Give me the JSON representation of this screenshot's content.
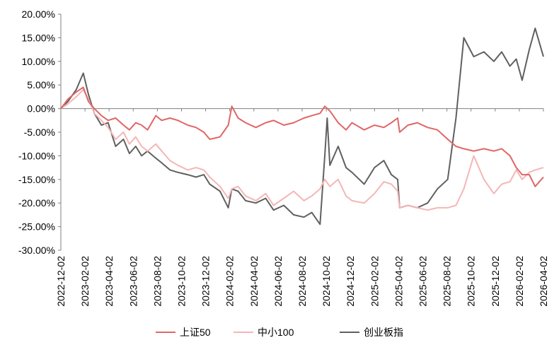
{
  "chart_data": {
    "type": "line",
    "title": "",
    "xlabel": "",
    "ylabel": "",
    "ylim": [
      -30,
      20
    ],
    "y_ticks": [
      20,
      15,
      10,
      5,
      0,
      -5,
      -10,
      -15,
      -20,
      -25,
      -30
    ],
    "y_tick_labels": [
      "20.00%",
      "15.00%",
      "10.00%",
      "5.00%",
      "0.00%",
      "-5.00%",
      "-10.00%",
      "-15.00%",
      "-20.00%",
      "-25.00%",
      "-30.00%"
    ],
    "x_tick_labels": [
      "2022-12-02",
      "2023-02-02",
      "2023-04-02",
      "2023-06-02",
      "2023-08-02",
      "2023-10-02",
      "2023-12-02",
      "2024-02-02",
      "2024-04-02",
      "2024-06-02",
      "2024-08-02",
      "2024-10-02",
      "2024-12-02",
      "2025-02-02",
      "2025-04-02",
      "2025-06-02",
      "2025-08-02",
      "2025-10-02",
      "2025-12-02",
      "2026-02-02",
      "2026-04-02"
    ],
    "x_start": "2022-12-02",
    "x_end": "2026-04-10",
    "grid": false,
    "legend_position": "bottom",
    "series": [
      {
        "name": "上证50",
        "color": "#e06666",
        "points": [
          [
            "2022-12-02",
            0
          ],
          [
            "2022-12-20",
            2
          ],
          [
            "2023-01-10",
            3.5
          ],
          [
            "2023-01-28",
            4.5
          ],
          [
            "2023-02-10",
            1.5
          ],
          [
            "2023-02-25",
            0
          ],
          [
            "2023-03-15",
            -1.5
          ],
          [
            "2023-04-01",
            -2.5
          ],
          [
            "2023-04-20",
            -2
          ],
          [
            "2023-05-10",
            -3.5
          ],
          [
            "2023-05-25",
            -4.5
          ],
          [
            "2023-06-10",
            -3
          ],
          [
            "2023-06-25",
            -3.5
          ],
          [
            "2023-07-10",
            -4.5
          ],
          [
            "2023-07-31",
            -1.5
          ],
          [
            "2023-08-15",
            -2.5
          ],
          [
            "2023-09-05",
            -2
          ],
          [
            "2023-09-25",
            -2.5
          ],
          [
            "2023-10-20",
            -3.5
          ],
          [
            "2023-11-10",
            -4
          ],
          [
            "2023-11-30",
            -5
          ],
          [
            "2023-12-15",
            -6.5
          ],
          [
            "2024-01-10",
            -6
          ],
          [
            "2024-01-31",
            -3.5
          ],
          [
            "2024-02-09",
            0.5
          ],
          [
            "2024-02-25",
            -2
          ],
          [
            "2024-03-15",
            -3
          ],
          [
            "2024-04-10",
            -4
          ],
          [
            "2024-05-05",
            -3
          ],
          [
            "2024-05-25",
            -2.5
          ],
          [
            "2024-06-20",
            -3.5
          ],
          [
            "2024-07-15",
            -3
          ],
          [
            "2024-08-10",
            -2
          ],
          [
            "2024-08-30",
            -1.5
          ],
          [
            "2024-09-20",
            -1
          ],
          [
            "2024-10-02",
            0.5
          ],
          [
            "2024-10-15",
            -0.5
          ],
          [
            "2024-11-05",
            -3
          ],
          [
            "2024-11-25",
            -4.5
          ],
          [
            "2024-12-10",
            -3
          ],
          [
            "2025-01-10",
            -4.5
          ],
          [
            "2025-02-05",
            -3.5
          ],
          [
            "2025-03-01",
            -4
          ],
          [
            "2025-03-20",
            -3
          ],
          [
            "2025-04-05",
            -2
          ],
          [
            "2025-04-10",
            -5
          ],
          [
            "2025-05-01",
            -3.5
          ],
          [
            "2025-05-25",
            -3
          ],
          [
            "2025-06-20",
            -4
          ],
          [
            "2025-07-15",
            -4.5
          ],
          [
            "2025-08-10",
            -6.5
          ],
          [
            "2025-08-31",
            -8
          ],
          [
            "2025-09-20",
            -8.5
          ],
          [
            "2025-10-15",
            -9
          ],
          [
            "2025-11-10",
            -8.5
          ],
          [
            "2025-12-05",
            -9
          ],
          [
            "2025-12-25",
            -8.5
          ],
          [
            "2026-01-15",
            -10
          ],
          [
            "2026-01-31",
            -12.5
          ],
          [
            "2026-02-15",
            -14
          ],
          [
            "2026-03-05",
            -14
          ],
          [
            "2026-03-20",
            -16.5
          ],
          [
            "2026-04-10",
            -14.5
          ]
        ]
      },
      {
        "name": "中小100",
        "color": "#f4b6b6",
        "points": [
          [
            "2022-12-02",
            0
          ],
          [
            "2022-12-20",
            1
          ],
          [
            "2023-01-10",
            2.5
          ],
          [
            "2023-01-28",
            4
          ],
          [
            "2023-02-10",
            2
          ],
          [
            "2023-02-25",
            -1
          ],
          [
            "2023-03-15",
            -2.5
          ],
          [
            "2023-04-01",
            -4
          ],
          [
            "2023-04-20",
            -6.5
          ],
          [
            "2023-05-10",
            -5
          ],
          [
            "2023-05-25",
            -7.5
          ],
          [
            "2023-06-10",
            -6
          ],
          [
            "2023-06-25",
            -8
          ],
          [
            "2023-07-10",
            -9
          ],
          [
            "2023-07-31",
            -7.5
          ],
          [
            "2023-08-15",
            -9
          ],
          [
            "2023-09-05",
            -11
          ],
          [
            "2023-09-25",
            -12
          ],
          [
            "2023-10-20",
            -13
          ],
          [
            "2023-11-10",
            -12.5
          ],
          [
            "2023-11-30",
            -13
          ],
          [
            "2023-12-15",
            -14.5
          ],
          [
            "2024-01-10",
            -16.5
          ],
          [
            "2024-01-31",
            -19
          ],
          [
            "2024-02-09",
            -17
          ],
          [
            "2024-02-25",
            -16.5
          ],
          [
            "2024-03-15",
            -18.5
          ],
          [
            "2024-04-10",
            -19.5
          ],
          [
            "2024-05-05",
            -18
          ],
          [
            "2024-05-25",
            -20.5
          ],
          [
            "2024-06-20",
            -19
          ],
          [
            "2024-07-15",
            -17.5
          ],
          [
            "2024-08-10",
            -19.5
          ],
          [
            "2024-08-30",
            -18.5
          ],
          [
            "2024-09-20",
            -17
          ],
          [
            "2024-10-02",
            -15
          ],
          [
            "2024-10-15",
            -16.5
          ],
          [
            "2024-11-05",
            -15
          ],
          [
            "2024-11-25",
            -18.5
          ],
          [
            "2024-12-10",
            -19.5
          ],
          [
            "2025-01-10",
            -20
          ],
          [
            "2025-02-05",
            -18
          ],
          [
            "2025-03-01",
            -15.5
          ],
          [
            "2025-03-20",
            -16
          ],
          [
            "2025-04-05",
            -17.5
          ],
          [
            "2025-04-10",
            -21
          ],
          [
            "2025-05-01",
            -20.5
          ],
          [
            "2025-05-25",
            -21
          ],
          [
            "2025-06-20",
            -21.5
          ],
          [
            "2025-07-15",
            -21
          ],
          [
            "2025-08-10",
            -21
          ],
          [
            "2025-08-31",
            -20.5
          ],
          [
            "2025-09-20",
            -17
          ],
          [
            "2025-10-15",
            -10
          ],
          [
            "2025-11-10",
            -15
          ],
          [
            "2025-12-05",
            -18
          ],
          [
            "2025-12-25",
            -16
          ],
          [
            "2026-01-15",
            -15.5
          ],
          [
            "2026-01-31",
            -13
          ],
          [
            "2026-02-15",
            -15
          ],
          [
            "2026-03-05",
            -13.5
          ],
          [
            "2026-03-20",
            -13
          ],
          [
            "2026-04-10",
            -12.5
          ]
        ]
      },
      {
        "name": "创业板指",
        "color": "#606060",
        "points": [
          [
            "2022-12-02",
            0
          ],
          [
            "2022-12-20",
            1.5
          ],
          [
            "2023-01-10",
            4
          ],
          [
            "2023-01-28",
            7.5
          ],
          [
            "2023-02-10",
            3
          ],
          [
            "2023-02-25",
            -1
          ],
          [
            "2023-03-15",
            -3.5
          ],
          [
            "2023-04-01",
            -3
          ],
          [
            "2023-04-20",
            -8
          ],
          [
            "2023-05-10",
            -6.5
          ],
          [
            "2023-05-25",
            -9.5
          ],
          [
            "2023-06-10",
            -8
          ],
          [
            "2023-06-25",
            -10
          ],
          [
            "2023-07-10",
            -9
          ],
          [
            "2023-07-31",
            -10.5
          ],
          [
            "2023-08-15",
            -11.5
          ],
          [
            "2023-09-05",
            -13
          ],
          [
            "2023-09-25",
            -13.5
          ],
          [
            "2023-10-20",
            -14
          ],
          [
            "2023-11-10",
            -14.5
          ],
          [
            "2023-11-30",
            -14
          ],
          [
            "2023-12-15",
            -16
          ],
          [
            "2024-01-10",
            -17.5
          ],
          [
            "2024-01-31",
            -21
          ],
          [
            "2024-02-09",
            -17
          ],
          [
            "2024-02-25",
            -17.5
          ],
          [
            "2024-03-15",
            -19.5
          ],
          [
            "2024-04-10",
            -20
          ],
          [
            "2024-05-05",
            -19
          ],
          [
            "2024-05-25",
            -21.5
          ],
          [
            "2024-06-20",
            -20.5
          ],
          [
            "2024-07-15",
            -22.5
          ],
          [
            "2024-08-10",
            -23
          ],
          [
            "2024-08-30",
            -22
          ],
          [
            "2024-09-20",
            -24.5
          ],
          [
            "2024-10-02",
            -10
          ],
          [
            "2024-10-08",
            -2
          ],
          [
            "2024-10-15",
            -12
          ],
          [
            "2024-11-05",
            -8
          ],
          [
            "2024-11-25",
            -12.5
          ],
          [
            "2024-12-10",
            -13.5
          ],
          [
            "2025-01-10",
            -16
          ],
          [
            "2025-02-05",
            -12.5
          ],
          [
            "2025-03-01",
            -11
          ],
          [
            "2025-03-20",
            -14
          ],
          [
            "2025-04-05",
            -15
          ],
          [
            "2025-04-10",
            -21
          ],
          [
            "2025-05-01",
            -20.5
          ],
          [
            "2025-05-25",
            -21
          ],
          [
            "2025-06-20",
            -20
          ],
          [
            "2025-07-15",
            -17
          ],
          [
            "2025-08-10",
            -15
          ],
          [
            "2025-08-31",
            -2
          ],
          [
            "2025-09-20",
            15
          ],
          [
            "2025-10-15",
            11
          ],
          [
            "2025-11-10",
            12
          ],
          [
            "2025-12-05",
            10
          ],
          [
            "2025-12-25",
            12
          ],
          [
            "2026-01-15",
            9
          ],
          [
            "2026-01-31",
            10.5
          ],
          [
            "2026-02-15",
            6
          ],
          [
            "2026-03-05",
            12.5
          ],
          [
            "2026-03-20",
            17
          ],
          [
            "2026-04-10",
            11
          ]
        ]
      }
    ]
  }
}
